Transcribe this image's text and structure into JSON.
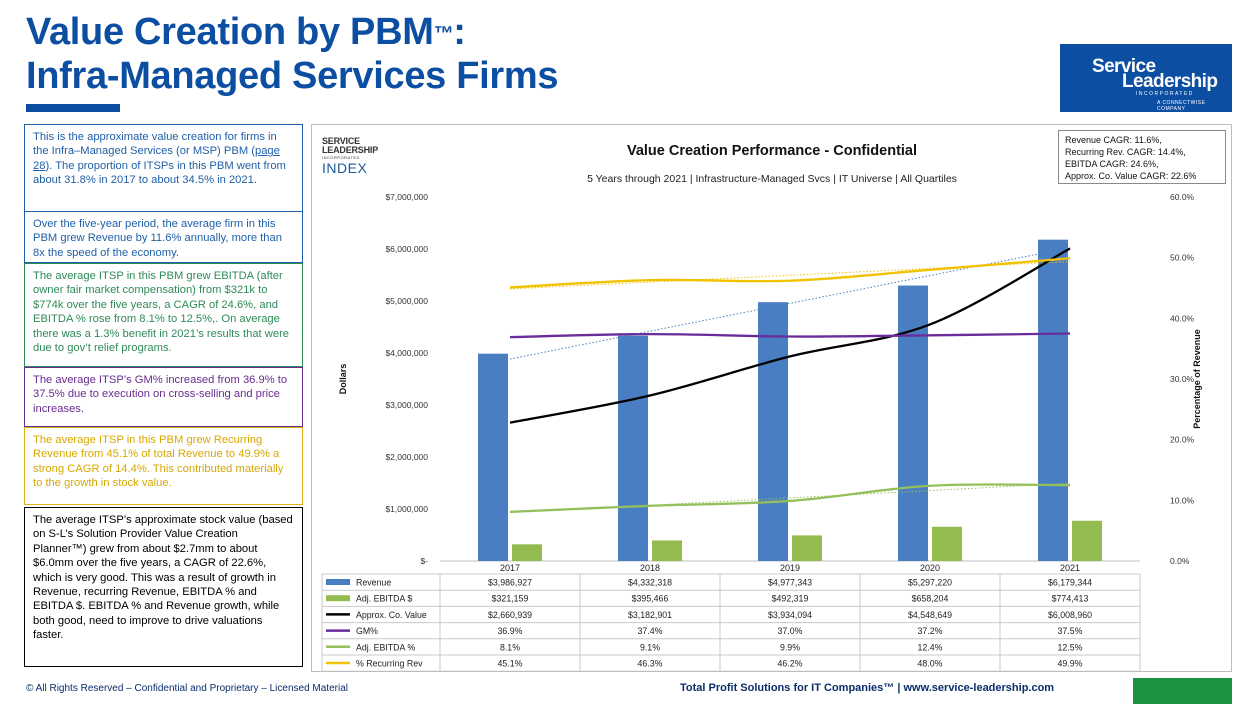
{
  "page": {
    "title_line1": "Value Creation by PBM",
    "title_tm": "™",
    "title_colon": ":",
    "title_line2": "Infra-Managed Services Firms",
    "logo_line1": "Service",
    "logo_line2": "Leadership",
    "logo_line3": "INCORPORATED",
    "logo_line4": "A CONNECTWISE COMPANY",
    "footer_left": "© All Rights Reserved – Confidential and Proprietary – Licensed Material",
    "footer_right": "Total Profit Solutions for IT Companies™  |  www.service-leadership.com",
    "colors": {
      "brand": "#0b4ea2",
      "footer_green": "#1a9441"
    }
  },
  "notes": {
    "b1_pre": "This is the approximate value creation for firms in the Infra–Managed Services (or MSP) PBM (",
    "b1_link": "page 28",
    "b1_post": "). The proportion of ITSPs in this PBM went from about 31.8% in 2017 to about 34.5% in 2021.",
    "b2": "Over the five-year period, the average firm in this PBM grew Revenue by 11.6% annually, more than 8x the speed of the economy.",
    "b3": "The average ITSP in this PBM grew EBITDA (after owner fair market compensation) from $321k to $774k over the five years, a CAGR of 24.6%, and EBITDA % rose from 8.1% to 12.5%,. On average there was a 1.3% benefit in 2021’s results that were due to gov’t relief programs.",
    "b4": "The average ITSP’s GM% increased from 36.9% to 37.5% due to execution on cross-selling and price increases.",
    "b5": "The average ITSP in this PBM grew Recurring Revenue from 45.1% of total Revenue to 49.9% a strong CAGR of 14.4%. This contributed materially to the growth in stock value.",
    "b6": "The average ITSP’s approximate stock value (based on  S-L’s Solution Provider Value Creation Planner™) grew from about $2.7mm to about $6.0mm over the five years, a CAGR of 22.6%, which is very good. This was a result of growth in Revenue, recurring Revenue, EBITDA % and EBITDA $. EBITDA % and Revenue growth, while both good, need to improve to drive valuations faster."
  },
  "chart_data": {
    "type": "bar",
    "title": "Value Creation Performance - Confidential",
    "subtitle": "5 Years through 2021 | Infrastructure-Managed  Svcs | IT Universe | All Quartiles",
    "logo_text": [
      "SERVICE",
      "LEADERSHIP",
      "INCORPORATED",
      "INDEX"
    ],
    "cagr_box": [
      "Revenue CAGR: 11.6%,",
      "Recurring Rev. CAGR: 14.4%,",
      "EBITDA CAGR: 24.6%,",
      "Approx. Co. Value CAGR: 22.6%"
    ],
    "ylabel": "Dollars",
    "y2label": "Percentage of Revenue",
    "ylim": [
      0,
      7000000
    ],
    "y2lim": [
      0,
      0.6
    ],
    "yticks": [
      "$-",
      "$1,000,000",
      "$2,000,000",
      "$3,000,000",
      "$4,000,000",
      "$5,000,000",
      "$6,000,000",
      "$7,000,000"
    ],
    "y2ticks": [
      "0.0%",
      "10.0%",
      "20.0%",
      "30.0%",
      "40.0%",
      "50.0%",
      "60.0%"
    ],
    "categories": [
      "2017",
      "2018",
      "2019",
      "2020",
      "2021"
    ],
    "series": [
      {
        "name": "Revenue",
        "kind": "bar",
        "axis": "left",
        "color": "#4a7ec2",
        "values": [
          3986927,
          4332318,
          4977343,
          5297220,
          6179344
        ],
        "labels": [
          "$3,986,927",
          "$4,332,318",
          "$4,977,343",
          "$5,297,220",
          "$6,179,344"
        ],
        "trendline": true
      },
      {
        "name": "Adj. EBITDA $",
        "kind": "bar",
        "axis": "left",
        "color": "#93bb4f",
        "values": [
          321159,
          395466,
          492319,
          658204,
          774413
        ],
        "labels": [
          "$321,159",
          "$395,466",
          "$492,319",
          "$658,204",
          "$774,413"
        ]
      },
      {
        "name": "Approx. Co. Value",
        "kind": "line",
        "axis": "left",
        "color": "#000000",
        "values": [
          2660939,
          3182901,
          3934094,
          4548649,
          6008960
        ],
        "labels": [
          "$2,660,939",
          "$3,182,901",
          "$3,934,094",
          "$4,548,649",
          "$6,008,960"
        ]
      },
      {
        "name": "GM%",
        "kind": "line",
        "axis": "right",
        "color": "#6a2c9b",
        "values": [
          0.369,
          0.374,
          0.37,
          0.372,
          0.375
        ],
        "labels": [
          "36.9%",
          "37.4%",
          "37.0%",
          "37.2%",
          "37.5%"
        ]
      },
      {
        "name": "Adj. EBITDA %",
        "kind": "line",
        "axis": "right",
        "color": "#93c05a",
        "values": [
          0.081,
          0.091,
          0.099,
          0.124,
          0.125
        ],
        "labels": [
          "8.1%",
          "9.1%",
          "9.9%",
          "12.4%",
          "12.5%"
        ],
        "trendline": true
      },
      {
        "name": "% Recurring Rev",
        "kind": "line",
        "axis": "right",
        "color": "#f2c100",
        "values": [
          0.451,
          0.463,
          0.462,
          0.48,
          0.499
        ],
        "labels": [
          "45.1%",
          "46.3%",
          "46.2%",
          "48.0%",
          "49.9%"
        ],
        "trendline": true
      }
    ],
    "grid": false,
    "legend": "data-table-below"
  }
}
